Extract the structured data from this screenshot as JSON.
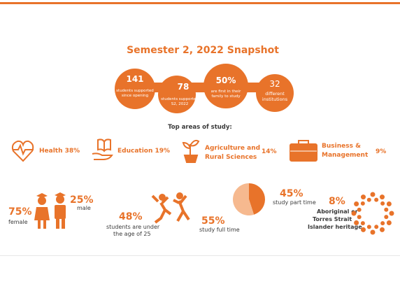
{
  "header": {
    "title": "Semester 2, 2022 Snapshot"
  },
  "highlights": [
    {
      "figure": "141",
      "text": [
        "students supported",
        "since opening"
      ]
    },
    {
      "figure": "78",
      "text": [
        "students supported",
        "S2, 2022"
      ]
    },
    {
      "figure": "50%",
      "text": [
        "are first in their",
        "family to study"
      ]
    },
    {
      "figure": "32",
      "text": [
        "different",
        "institutions"
      ]
    }
  ],
  "areas": {
    "heading": "Top areas of study:",
    "items": [
      {
        "label": [
          "Health 38%"
        ]
      },
      {
        "label": [
          "Education 19%"
        ]
      },
      {
        "label": [
          "Agriculture and",
          "Rural Sciences"
        ],
        "percent": "14%"
      },
      {
        "label": [
          "Business &",
          "Management"
        ],
        "percent": "9%"
      }
    ]
  },
  "demographics": {
    "female": {
      "figure": "75%",
      "text": "female"
    },
    "male": {
      "figure": "25%",
      "text": "male"
    },
    "age": {
      "figure": "48%",
      "text": [
        "students are under",
        "the age of 25"
      ]
    },
    "study": {
      "full_time": {
        "value": 55,
        "label": "55%",
        "text": "study full time",
        "color": "#f6b98f"
      },
      "part_time": {
        "value": 45,
        "label": "45%",
        "text": "study part time",
        "color": "#e8732a"
      }
    },
    "heritage": {
      "figure": "8%",
      "text": [
        "Aboriginal or",
        "Torres Strait",
        "Islander heritage"
      ]
    }
  }
}
